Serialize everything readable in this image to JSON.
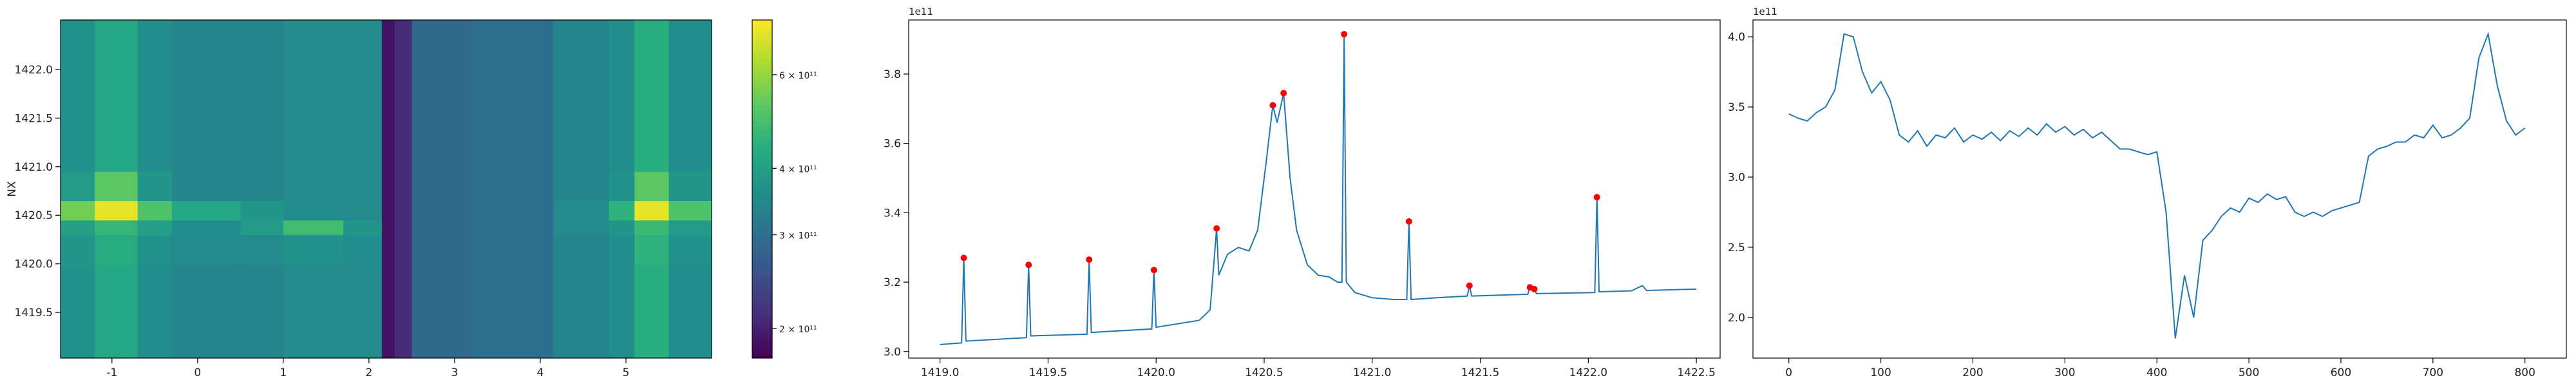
{
  "chart_data": [
    {
      "type": "heatmap",
      "colormap": "viridis",
      "y_label": "NX",
      "x_edges": [
        -1.6,
        -1.2,
        -0.7,
        -0.3,
        0.5,
        1.0,
        1.7,
        2.15,
        2.3,
        2.5,
        3.2,
        4.15,
        4.8,
        5.1,
        5.5,
        6.0
      ],
      "y_edges": [
        1419.03,
        1419.5,
        1420.0,
        1420.3,
        1420.45,
        1420.65,
        1420.95,
        1421.5,
        1422.0,
        1422.51
      ],
      "z": [
        [
          370000000000.0,
          420000000000.0,
          360000000000.0,
          340000000000.0,
          340000000000.0,
          350000000000.0,
          350000000000.0,
          190000000000.0,
          210000000000.0,
          290000000000.0,
          300000000000.0,
          340000000000.0,
          360000000000.0,
          440000000000.0,
          360000000000.0
        ],
        [
          370000000000.0,
          420000000000.0,
          360000000000.0,
          340000000000.0,
          340000000000.0,
          350000000000.0,
          350000000000.0,
          190000000000.0,
          210000000000.0,
          290000000000.0,
          300000000000.0,
          340000000000.0,
          360000000000.0,
          440000000000.0,
          360000000000.0
        ],
        [
          380000000000.0,
          430000000000.0,
          370000000000.0,
          350000000000.0,
          350000000000.0,
          370000000000.0,
          360000000000.0,
          190000000000.0,
          210000000000.0,
          290000000000.0,
          300000000000.0,
          340000000000.0,
          360000000000.0,
          450000000000.0,
          370000000000.0
        ],
        [
          400000000000.0,
          460000000000.0,
          400000000000.0,
          360000000000.0,
          390000000000.0,
          480000000000.0,
          380000000000.0,
          190000000000.0,
          210000000000.0,
          290000000000.0,
          300000000000.0,
          350000000000.0,
          380000000000.0,
          470000000000.0,
          390000000000.0
        ],
        [
          550000000000.0,
          720000000000.0,
          500000000000.0,
          420000000000.0,
          380000000000.0,
          360000000000.0,
          350000000000.0,
          190000000000.0,
          210000000000.0,
          290000000000.0,
          300000000000.0,
          350000000000.0,
          450000000000.0,
          720000000000.0,
          500000000000.0
        ],
        [
          390000000000.0,
          520000000000.0,
          380000000000.0,
          340000000000.0,
          340000000000.0,
          350000000000.0,
          350000000000.0,
          190000000000.0,
          210000000000.0,
          290000000000.0,
          300000000000.0,
          340000000000.0,
          370000000000.0,
          520000000000.0,
          380000000000.0
        ],
        [
          370000000000.0,
          420000000000.0,
          360000000000.0,
          340000000000.0,
          340000000000.0,
          350000000000.0,
          350000000000.0,
          190000000000.0,
          210000000000.0,
          290000000000.0,
          300000000000.0,
          340000000000.0,
          360000000000.0,
          440000000000.0,
          360000000000.0
        ],
        [
          370000000000.0,
          420000000000.0,
          360000000000.0,
          340000000000.0,
          340000000000.0,
          350000000000.0,
          350000000000.0,
          190000000000.0,
          210000000000.0,
          290000000000.0,
          300000000000.0,
          340000000000.0,
          360000000000.0,
          440000000000.0,
          360000000000.0
        ],
        [
          370000000000.0,
          420000000000.0,
          360000000000.0,
          340000000000.0,
          340000000000.0,
          350000000000.0,
          350000000000.0,
          190000000000.0,
          210000000000.0,
          290000000000.0,
          300000000000.0,
          340000000000.0,
          360000000000.0,
          440000000000.0,
          360000000000.0
        ]
      ],
      "xlim": [
        -1.6,
        6.0
      ],
      "ylim": [
        1419.03,
        1422.51
      ],
      "xticks": [
        -1,
        0,
        1,
        2,
        3,
        4,
        5
      ],
      "yticks": [
        {
          "value": 1419.5,
          "label": "1419.5"
        },
        {
          "value": 1420,
          "label": "1420.0"
        },
        {
          "value": 1420.5,
          "label": "1420.5"
        },
        {
          "value": 1421,
          "label": "1421.0"
        },
        {
          "value": 1421.5,
          "label": "1421.5"
        },
        {
          "value": 1422,
          "label": "1422.0"
        }
      ],
      "colorbar": {
        "scale": "log",
        "lim": [
          176000000000.0,
          760000000000.0
        ],
        "ticks": [
          {
            "value": 200000000000.0,
            "label": "2 × 10¹¹"
          },
          {
            "value": 300000000000.0,
            "label": "3 × 10¹¹"
          },
          {
            "value": 400000000000.0,
            "label": "4 × 10¹¹"
          },
          {
            "value": 600000000000.0,
            "label": "6 × 10¹¹"
          }
        ]
      }
    },
    {
      "type": "line",
      "color": "#1f77b4",
      "offset_label": "1e11",
      "x": [
        1419.0,
        1419.1,
        1419.11,
        1419.12,
        1419.4,
        1419.41,
        1419.42,
        1419.68,
        1419.69,
        1419.7,
        1419.98,
        1419.99,
        1420.0,
        1420.2,
        1420.25,
        1420.28,
        1420.29,
        1420.33,
        1420.38,
        1420.43,
        1420.47,
        1420.51,
        1420.54,
        1420.56,
        1420.59,
        1420.62,
        1420.65,
        1420.7,
        1420.75,
        1420.8,
        1420.84,
        1420.86,
        1420.87,
        1420.88,
        1420.92,
        1421.0,
        1421.1,
        1421.16,
        1421.17,
        1421.18,
        1421.3,
        1421.44,
        1421.45,
        1421.46,
        1421.72,
        1421.73,
        1421.74,
        1421.75,
        1421.76,
        1422.03,
        1422.04,
        1422.05,
        1422.2,
        1422.25,
        1422.27,
        1422.5
      ],
      "values": [
        3.02,
        3.025,
        3.27,
        3.03,
        3.04,
        3.25,
        3.045,
        3.05,
        3.265,
        3.055,
        3.065,
        3.235,
        3.07,
        3.09,
        3.12,
        3.355,
        3.22,
        3.28,
        3.3,
        3.29,
        3.35,
        3.55,
        3.71,
        3.66,
        3.745,
        3.5,
        3.35,
        3.25,
        3.22,
        3.215,
        3.2,
        3.2,
        3.915,
        3.2,
        3.17,
        3.155,
        3.15,
        3.15,
        3.375,
        3.15,
        3.155,
        3.16,
        3.19,
        3.16,
        3.165,
        3.185,
        3.18,
        3.18,
        3.167,
        3.17,
        3.445,
        3.172,
        3.175,
        3.19,
        3.176,
        3.18
      ],
      "markers": {
        "color": "red",
        "x": [
          1419.11,
          1419.41,
          1419.69,
          1419.99,
          1420.28,
          1420.54,
          1420.59,
          1420.87,
          1421.17,
          1421.45,
          1421.73,
          1421.75,
          1422.04
        ],
        "values": [
          3.27,
          3.25,
          3.265,
          3.235,
          3.355,
          3.71,
          3.745,
          3.915,
          3.375,
          3.19,
          3.185,
          3.18,
          3.445
        ]
      },
      "xlim": [
        1418.855,
        1422.61
      ],
      "ylim": [
        2.981,
        3.956
      ],
      "xticks": [
        {
          "value": 1419,
          "label": "1419.0"
        },
        1419.5,
        {
          "value": 1420,
          "label": "1420.0"
        },
        1420.5,
        {
          "value": 1421,
          "label": "1421.0"
        },
        1421.5,
        {
          "value": 1422,
          "label": "1422.0"
        },
        1422.5
      ],
      "yticks": [
        {
          "value": 3,
          "label": "3.0"
        },
        3.2,
        3.4,
        3.6,
        3.8
      ]
    },
    {
      "type": "line",
      "color": "#1f77b4",
      "offset_label": "1e11",
      "x": [
        0,
        10,
        20,
        30,
        40,
        50,
        60,
        70,
        80,
        90,
        100,
        110,
        120,
        130,
        140,
        150,
        160,
        170,
        180,
        190,
        200,
        210,
        220,
        230,
        240,
        250,
        260,
        270,
        280,
        290,
        300,
        310,
        320,
        330,
        340,
        350,
        360,
        370,
        380,
        390,
        400,
        410,
        420,
        430,
        440,
        450,
        460,
        470,
        480,
        490,
        500,
        510,
        520,
        530,
        540,
        550,
        560,
        570,
        580,
        590,
        600,
        610,
        620,
        630,
        640,
        650,
        660,
        670,
        680,
        690,
        700,
        710,
        720,
        730,
        740,
        750,
        760,
        770,
        780,
        790,
        800
      ],
      "values": [
        3.45,
        3.42,
        3.4,
        3.46,
        3.5,
        3.62,
        4.02,
        4.0,
        3.75,
        3.6,
        3.68,
        3.55,
        3.3,
        3.25,
        3.33,
        3.22,
        3.3,
        3.28,
        3.35,
        3.25,
        3.3,
        3.27,
        3.32,
        3.26,
        3.33,
        3.29,
        3.35,
        3.3,
        3.38,
        3.32,
        3.36,
        3.3,
        3.34,
        3.28,
        3.32,
        3.26,
        3.2,
        3.2,
        3.18,
        3.16,
        3.18,
        2.75,
        1.85,
        2.3,
        2.0,
        2.55,
        2.62,
        2.72,
        2.78,
        2.75,
        2.85,
        2.82,
        2.88,
        2.84,
        2.86,
        2.75,
        2.72,
        2.75,
        2.72,
        2.76,
        2.78,
        2.8,
        2.82,
        3.15,
        3.2,
        3.22,
        3.25,
        3.25,
        3.3,
        3.28,
        3.37,
        3.28,
        3.3,
        3.35,
        3.42,
        3.85,
        4.02,
        3.65,
        3.4,
        3.3,
        3.35
      ],
      "xlim": [
        -39,
        845
      ],
      "ylim": [
        1.71,
        4.12
      ],
      "xticks": [
        0,
        100,
        200,
        300,
        400,
        500,
        600,
        700,
        800
      ],
      "yticks": [
        {
          "value": 2,
          "label": "2.0"
        },
        2.5,
        {
          "value": 3,
          "label": "3.0"
        },
        3.5,
        {
          "value": 4,
          "label": "4.0"
        }
      ]
    }
  ]
}
